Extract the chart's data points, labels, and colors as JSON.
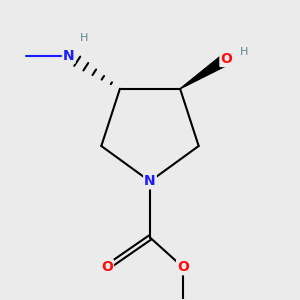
{
  "background_color": "#ebebeb",
  "atom_colors": {
    "C": "#000000",
    "N": "#1a1aff",
    "O": "#ff0d0d",
    "H": "#5a8a8a"
  },
  "figsize": [
    3.0,
    3.0
  ],
  "dpi": 100
}
